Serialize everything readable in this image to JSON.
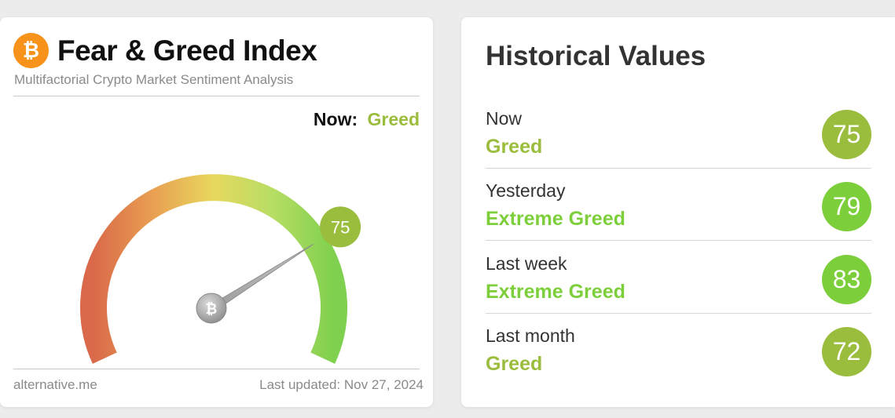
{
  "index_card": {
    "title": "Fear & Greed Index",
    "subtitle": "Multifactorial Crypto Market Sentiment Analysis",
    "now_label": "Now:",
    "now_classification": "Greed",
    "value": "75",
    "value_fraction": 0.75,
    "footer_source": "alternative.me",
    "footer_updated": "Last updated: Nov 27, 2024",
    "logo_icon": "bitcoin-icon"
  },
  "historical": {
    "title": "Historical Values",
    "rows": [
      {
        "label": "Now",
        "classification": "Greed",
        "value": "75",
        "color": "#9bbd3d"
      },
      {
        "label": "Yesterday",
        "classification": "Extreme Greed",
        "value": "79",
        "color": "#7ccf3a"
      },
      {
        "label": "Last week",
        "classification": "Extreme Greed",
        "value": "83",
        "color": "#7ccf3a"
      },
      {
        "label": "Last month",
        "classification": "Greed",
        "value": "72",
        "color": "#9bbd3d"
      }
    ]
  },
  "colors": {
    "greed": "#9bbd3d",
    "extreme_greed": "#7ccf3a",
    "bitcoin": "#f7931a"
  }
}
